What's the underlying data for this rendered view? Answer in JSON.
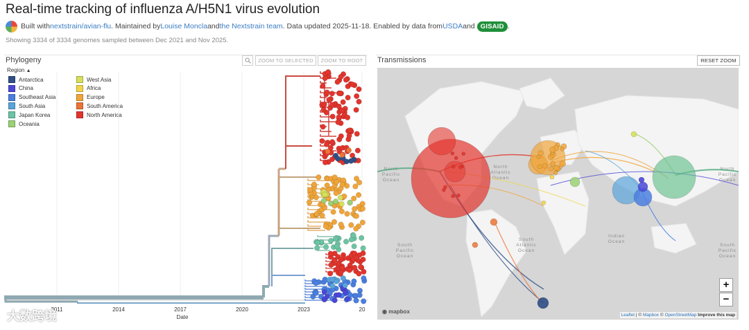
{
  "header": {
    "title": "Real-time tracking of influenza A/H5N1 virus evolution",
    "byline": {
      "built_with": "Built with ",
      "repo_link": "nextstrain/avian-flu",
      "maintained_by": ". Maintained by ",
      "maintainer1": "Louise Moncla",
      "and": " and ",
      "maintainer2": "the Nextstrain team",
      "updated": ". Data updated 2025-11-18. Enabled by data from ",
      "usda": "USDA",
      "and2": " and ",
      "gisaid": "GISAID",
      "end": "."
    },
    "subtitle": "Showing 3334 of 3334 genomes sampled between Dec 2021 and Nov 2025."
  },
  "phylogeny": {
    "title": "Phylogeny",
    "zoom_selected": "ZOOM TO SELECTED",
    "zoom_root": "ZOOM TO ROOT",
    "search_icon": "magnifier-icon",
    "legend_title": "Region",
    "legend": [
      {
        "label": "Antarctica",
        "color": "#2f4f86"
      },
      {
        "label": "China",
        "color": "#4a47d8"
      },
      {
        "label": "Southeast Asia",
        "color": "#4a7fe0"
      },
      {
        "label": "South Asia",
        "color": "#5aa4dc"
      },
      {
        "label": "Japan Korea",
        "color": "#6cc4a4"
      },
      {
        "label": "Oceania",
        "color": "#9bd176"
      },
      {
        "label": "West Asia",
        "color": "#d6e05a"
      },
      {
        "label": "Africa",
        "color": "#f2d54a"
      },
      {
        "label": "Europe",
        "color": "#f0a53a"
      },
      {
        "label": "South America",
        "color": "#ec7436"
      },
      {
        "label": "North America",
        "color": "#e2352d"
      }
    ],
    "axis_ticks": [
      "2011",
      "2014",
      "2017",
      "2020",
      "2023",
      "20"
    ],
    "axis_label": "Date"
  },
  "transmissions": {
    "title": "Transmissions",
    "reset_zoom": "RESET ZOOM",
    "zoom_in": "+",
    "zoom_out": "−",
    "mapbox_logo": "mapbox",
    "ocean_labels": [
      "North Pacific Ocean",
      "North Atlantic Ocean",
      "South Pacific Ocean",
      "South Atlantic Ocean",
      "Indian Ocean",
      "North Pacific Ocean",
      "South Pacific Ocean"
    ],
    "attribution": {
      "leaflet": "Leaflet",
      "sep1": " | © ",
      "mapbox": "Mapbox",
      "sep2": " © ",
      "osm": "OpenStreetMap",
      "improve": "Improve this map"
    }
  },
  "watermark": "大数跨境"
}
